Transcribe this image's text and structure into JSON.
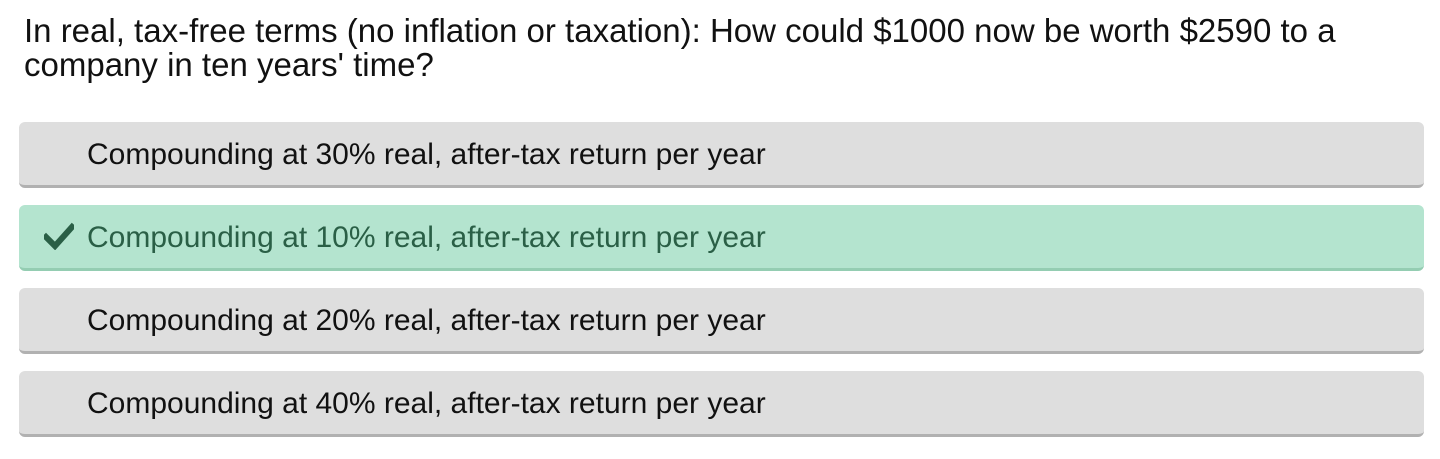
{
  "question": {
    "text": "In real, tax-free terms (no inflation or taxation): How could $1000 now be worth $2590 to a company in ten years' time?"
  },
  "options": [
    {
      "label": "Compounding at 30% real, after-tax return per year",
      "correct": false
    },
    {
      "label": "Compounding at 10% real, after-tax return per year",
      "correct": true,
      "icon": "check-icon"
    },
    {
      "label": "Compounding at 20% real, after-tax return per year",
      "correct": false
    },
    {
      "label": "Compounding at 40% real, after-tax return per year",
      "correct": false
    }
  ],
  "colors": {
    "option_bg": "#dedede",
    "correct_bg": "#b4e4cf",
    "correct_text": "#2a5f46"
  }
}
